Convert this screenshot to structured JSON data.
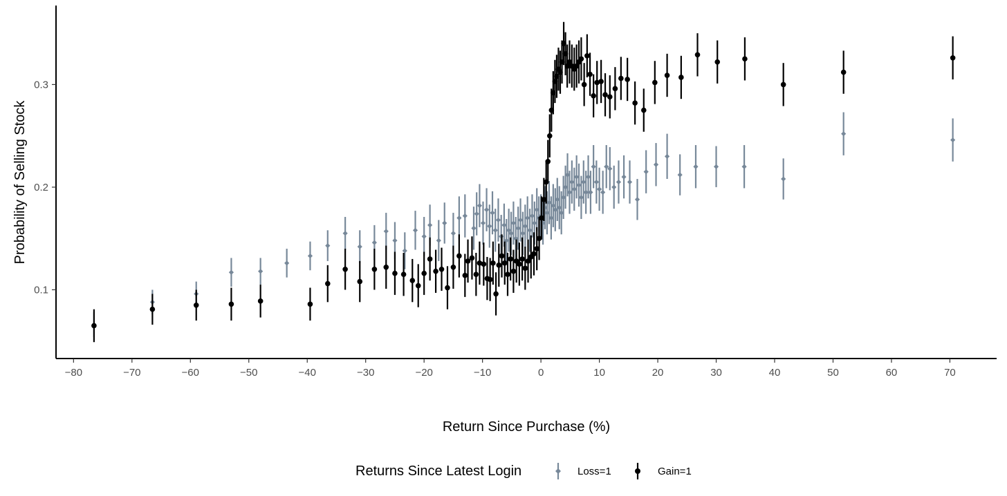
{
  "chart_data": {
    "type": "scatter",
    "title": "",
    "xlabel": "Return Since Purchase (%)",
    "ylabel": "Probability of Selling Stock",
    "xlim": [
      -83,
      78
    ],
    "ylim": [
      0.033,
      0.377
    ],
    "x_ticks": [
      -80,
      -70,
      -60,
      -50,
      -40,
      -30,
      -20,
      -10,
      0,
      10,
      20,
      30,
      40,
      50,
      60,
      70
    ],
    "x_tick_labels": [
      "−80",
      "−70",
      "−60",
      "−50",
      "−40",
      "−30",
      "−20",
      "−10",
      "0",
      "10",
      "20",
      "30",
      "40",
      "50",
      "60",
      "70"
    ],
    "y_ticks": [
      0.1,
      0.2,
      0.3
    ],
    "y_tick_labels": [
      "0.1",
      "0.2",
      "0.3"
    ],
    "grid": false,
    "error_bars": true,
    "legend": {
      "title": "Returns Since Latest Login",
      "position": "bottom",
      "entries": [
        "Loss=1",
        "Gain=1"
      ]
    },
    "series": [
      {
        "name": "Loss=1",
        "color": "#778899",
        "marker": "diamond",
        "x": [
          -76.5,
          -66.5,
          -59,
          -53,
          -48,
          -43.5,
          -39.5,
          -36.5,
          -33.5,
          -31,
          -28.5,
          -26.5,
          -25,
          -23.3,
          -21.5,
          -20,
          -19,
          -17.5,
          -16.5,
          -15,
          -14,
          -13,
          -11.5,
          -11,
          -10.5,
          -9.9,
          -9.3,
          -8.8,
          -8.3,
          -7.8,
          -7.3,
          -6.8,
          -6.3,
          -5.9,
          -5.5,
          -5.1,
          -4.7,
          -4.3,
          -3.9,
          -3.5,
          -3.1,
          -2.7,
          -2.3,
          -1.9,
          -1.5,
          -1.1,
          -0.7,
          -0.35,
          0,
          0.35,
          0.7,
          1.05,
          1.4,
          1.75,
          2.1,
          2.45,
          2.8,
          3.15,
          3.5,
          3.85,
          4.2,
          4.55,
          4.9,
          5.3,
          5.7,
          6.1,
          6.5,
          6.9,
          7.3,
          7.7,
          8.1,
          8.5,
          9,
          9.5,
          10,
          10.6,
          11.2,
          11.8,
          12.5,
          13.3,
          14.2,
          15.2,
          16.5,
          18,
          19.7,
          21.6,
          23.8,
          26.5,
          30,
          34.8,
          41.5,
          51.8,
          70.5
        ],
        "values": [
          0.066,
          0.088,
          0.096,
          0.117,
          0.118,
          0.126,
          0.133,
          0.143,
          0.155,
          0.142,
          0.146,
          0.157,
          0.148,
          0.138,
          0.158,
          0.152,
          0.163,
          0.148,
          0.165,
          0.155,
          0.17,
          0.172,
          0.16,
          0.174,
          0.182,
          0.165,
          0.178,
          0.162,
          0.175,
          0.158,
          0.168,
          0.152,
          0.163,
          0.148,
          0.158,
          0.155,
          0.165,
          0.15,
          0.16,
          0.168,
          0.155,
          0.162,
          0.17,
          0.158,
          0.172,
          0.165,
          0.178,
          0.17,
          0.172,
          0.165,
          0.18,
          0.175,
          0.185,
          0.17,
          0.182,
          0.178,
          0.188,
          0.18,
          0.175,
          0.19,
          0.2,
          0.212,
          0.195,
          0.205,
          0.198,
          0.21,
          0.202,
          0.19,
          0.205,
          0.195,
          0.21,
          0.195,
          0.22,
          0.205,
          0.198,
          0.195,
          0.22,
          0.218,
          0.2,
          0.205,
          0.21,
          0.205,
          0.188,
          0.215,
          0.222,
          0.23,
          0.212,
          0.22,
          0.22,
          0.22,
          0.208,
          0.252,
          0.246
        ],
        "error": [
          0.012,
          0.012,
          0.012,
          0.014,
          0.013,
          0.014,
          0.014,
          0.015,
          0.016,
          0.016,
          0.017,
          0.018,
          0.018,
          0.018,
          0.019,
          0.019,
          0.02,
          0.02,
          0.02,
          0.02,
          0.021,
          0.021,
          0.021,
          0.021,
          0.021,
          0.021,
          0.021,
          0.021,
          0.021,
          0.021,
          0.021,
          0.021,
          0.021,
          0.021,
          0.021,
          0.021,
          0.021,
          0.021,
          0.021,
          0.021,
          0.021,
          0.021,
          0.021,
          0.021,
          0.021,
          0.021,
          0.021,
          0.021,
          0.021,
          0.021,
          0.021,
          0.021,
          0.021,
          0.021,
          0.021,
          0.021,
          0.021,
          0.021,
          0.021,
          0.021,
          0.021,
          0.021,
          0.021,
          0.021,
          0.021,
          0.021,
          0.021,
          0.021,
          0.021,
          0.021,
          0.021,
          0.021,
          0.021,
          0.021,
          0.021,
          0.021,
          0.021,
          0.021,
          0.021,
          0.021,
          0.021,
          0.021,
          0.02,
          0.021,
          0.021,
          0.022,
          0.02,
          0.021,
          0.02,
          0.021,
          0.02,
          0.021,
          0.021
        ]
      },
      {
        "name": "Gain=1",
        "color": "#000000",
        "marker": "circle",
        "x": [
          -76.5,
          -66.5,
          -59,
          -53,
          -48,
          -39.5,
          -36.5,
          -33.5,
          -31,
          -28.5,
          -26.5,
          -25,
          -23.5,
          -22,
          -21,
          -20,
          -19,
          -18,
          -17,
          -16,
          -15,
          -14,
          -13,
          -12.5,
          -11.8,
          -11.1,
          -10.5,
          -9.8,
          -9.2,
          -8.7,
          -8.2,
          -7.7,
          -7.2,
          -6.7,
          -6.2,
          -5.7,
          -5.2,
          -4.7,
          -4.2,
          -3.7,
          -3.2,
          -2.7,
          -2.2,
          -1.7,
          -1.2,
          -0.7,
          -0.3,
          0.1,
          0.5,
          0.9,
          1.2,
          1.5,
          1.8,
          2.1,
          2.4,
          2.7,
          3.0,
          3.3,
          3.6,
          3.9,
          4.2,
          4.5,
          4.9,
          5.3,
          5.7,
          6.1,
          6.5,
          6.9,
          7.4,
          7.9,
          8.4,
          9,
          9.6,
          10.3,
          11,
          11.8,
          12.7,
          13.7,
          14.8,
          16.1,
          17.6,
          19.5,
          21.6,
          24,
          26.8,
          30.2,
          34.9,
          41.5,
          51.8,
          70.5
        ],
        "values": [
          0.065,
          0.081,
          0.085,
          0.086,
          0.089,
          0.086,
          0.106,
          0.12,
          0.108,
          0.12,
          0.122,
          0.116,
          0.115,
          0.109,
          0.104,
          0.116,
          0.13,
          0.118,
          0.12,
          0.102,
          0.122,
          0.133,
          0.114,
          0.128,
          0.131,
          0.115,
          0.126,
          0.125,
          0.111,
          0.11,
          0.126,
          0.096,
          0.124,
          0.133,
          0.126,
          0.115,
          0.13,
          0.118,
          0.128,
          0.125,
          0.13,
          0.121,
          0.128,
          0.132,
          0.135,
          0.14,
          0.15,
          0.17,
          0.188,
          0.205,
          0.225,
          0.25,
          0.275,
          0.292,
          0.303,
          0.308,
          0.315,
          0.312,
          0.322,
          0.34,
          0.33,
          0.318,
          0.322,
          0.318,
          0.315,
          0.318,
          0.322,
          0.325,
          0.3,
          0.328,
          0.31,
          0.289,
          0.302,
          0.303,
          0.29,
          0.288,
          0.296,
          0.306,
          0.305,
          0.282,
          0.275,
          0.302,
          0.309,
          0.307,
          0.329,
          0.322,
          0.325,
          0.3,
          0.312,
          0.326
        ],
        "error": [
          0.016,
          0.015,
          0.015,
          0.016,
          0.016,
          0.016,
          0.018,
          0.02,
          0.02,
          0.02,
          0.021,
          0.021,
          0.021,
          0.021,
          0.021,
          0.021,
          0.021,
          0.021,
          0.021,
          0.021,
          0.021,
          0.021,
          0.021,
          0.021,
          0.021,
          0.021,
          0.021,
          0.021,
          0.021,
          0.021,
          0.021,
          0.021,
          0.021,
          0.021,
          0.021,
          0.021,
          0.021,
          0.021,
          0.021,
          0.021,
          0.021,
          0.021,
          0.021,
          0.021,
          0.021,
          0.021,
          0.021,
          0.021,
          0.021,
          0.021,
          0.021,
          0.021,
          0.021,
          0.021,
          0.021,
          0.021,
          0.021,
          0.021,
          0.021,
          0.021,
          0.021,
          0.021,
          0.021,
          0.021,
          0.021,
          0.021,
          0.021,
          0.021,
          0.021,
          0.021,
          0.021,
          0.021,
          0.021,
          0.021,
          0.021,
          0.021,
          0.021,
          0.021,
          0.021,
          0.021,
          0.021,
          0.021,
          0.021,
          0.021,
          0.021,
          0.021,
          0.021,
          0.021,
          0.021,
          0.021
        ]
      }
    ]
  }
}
